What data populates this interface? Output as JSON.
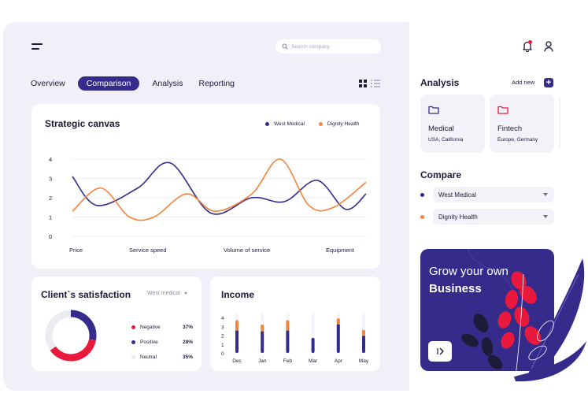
{
  "search": {
    "placeholder": "Search company",
    "value": ""
  },
  "tabs": [
    {
      "label": "Overview"
    },
    {
      "label": "Comparison",
      "active": true
    },
    {
      "label": "Analysis"
    },
    {
      "label": "Reporting"
    }
  ],
  "strategic": {
    "title": "Strategic canvas",
    "legend": [
      {
        "name": "West Medical",
        "color": "#352b8b"
      },
      {
        "name": "Dignity Health",
        "color": "#f5843a"
      }
    ]
  },
  "satisfaction": {
    "title": "Client`s satisfaction",
    "filter": "West medical",
    "rows": [
      {
        "label": "Negative",
        "value": "37%",
        "color": "#e8193c"
      },
      {
        "label": "Positive",
        "value": "28%",
        "color": "#352b8b"
      },
      {
        "label": "Neutral",
        "value": "35%",
        "color": "#ebebf2"
      }
    ]
  },
  "income": {
    "title": "Income"
  },
  "analysis": {
    "title": "Analysis",
    "add_new": "Add new",
    "add_symbol": "+",
    "cards": [
      {
        "name": "Medical",
        "location": "USA, California",
        "icon": "folder-icon",
        "color": "#352b8b"
      },
      {
        "name": "Fintech",
        "location": "Europe, Germany",
        "icon": "folder-icon",
        "color": "#e8193c"
      }
    ]
  },
  "compare": {
    "title": "Compare",
    "items": [
      {
        "name": "West Medical",
        "color": "#352b8b"
      },
      {
        "name": "Dignity Health",
        "color": "#f5843a"
      }
    ]
  },
  "promo": {
    "line1": "Grow your own",
    "line2": "Business",
    "button_icon": "chevron-right-icon"
  },
  "header_icons": {
    "notification": "bell-icon",
    "profile": "user-icon",
    "notification_badge_color": "#e8193c"
  },
  "chart_data": [
    {
      "type": "line",
      "title": "Strategic canvas",
      "x": [
        "Price",
        "Service speed",
        "Volume of service",
        "Equipment"
      ],
      "ylim": [
        0,
        4
      ],
      "yticks": [
        0,
        1,
        2,
        3,
        4
      ],
      "grid": true,
      "legend_position": "top-right",
      "series": [
        {
          "name": "West Medical",
          "color": "#352b8b",
          "points": [
            [
              0,
              3.1
            ],
            [
              0.3,
              1.6
            ],
            [
              0.8,
              2.5
            ],
            [
              1.2,
              3.8
            ],
            [
              1.7,
              1.2
            ],
            [
              2.2,
              2.0
            ],
            [
              2.6,
              1.8
            ],
            [
              3.0,
              2.9
            ],
            [
              3.35,
              1.4
            ],
            [
              3.6,
              2.2
            ]
          ]
        },
        {
          "name": "Dignity Health",
          "color": "#f5843a",
          "points": [
            [
              0,
              1.3
            ],
            [
              0.35,
              2.5
            ],
            [
              0.7,
              1.0
            ],
            [
              1.0,
              1.0
            ],
            [
              1.4,
              2.2
            ],
            [
              1.75,
              1.3
            ],
            [
              2.2,
              2.2
            ],
            [
              2.55,
              4.0
            ],
            [
              2.9,
              1.6
            ],
            [
              3.2,
              1.5
            ],
            [
              3.6,
              2.8
            ]
          ]
        }
      ]
    },
    {
      "type": "pie",
      "title": "Client`s satisfaction",
      "labels": [
        "Negative",
        "Positive",
        "Neutral"
      ],
      "values": [
        37,
        28,
        35
      ],
      "colors": [
        "#e8193c",
        "#352b8b",
        "#ebebf2"
      ]
    },
    {
      "type": "bar",
      "title": "Income",
      "categories": [
        "Dec",
        "Jan",
        "Feb",
        "Mar",
        "Apr",
        "May"
      ],
      "ylim": [
        0,
        4
      ],
      "yticks": [
        0,
        1,
        2,
        3,
        4
      ],
      "series": [
        {
          "name": "",
          "color": "#352b8b",
          "values": [
            2.6,
            2.5,
            2.6,
            1.7,
            3.3,
            2.0
          ]
        },
        {
          "name": "",
          "color": "#f5843a",
          "values": [
            1.1,
            0.7,
            1.1,
            0,
            0.6,
            0.6
          ]
        }
      ]
    }
  ]
}
